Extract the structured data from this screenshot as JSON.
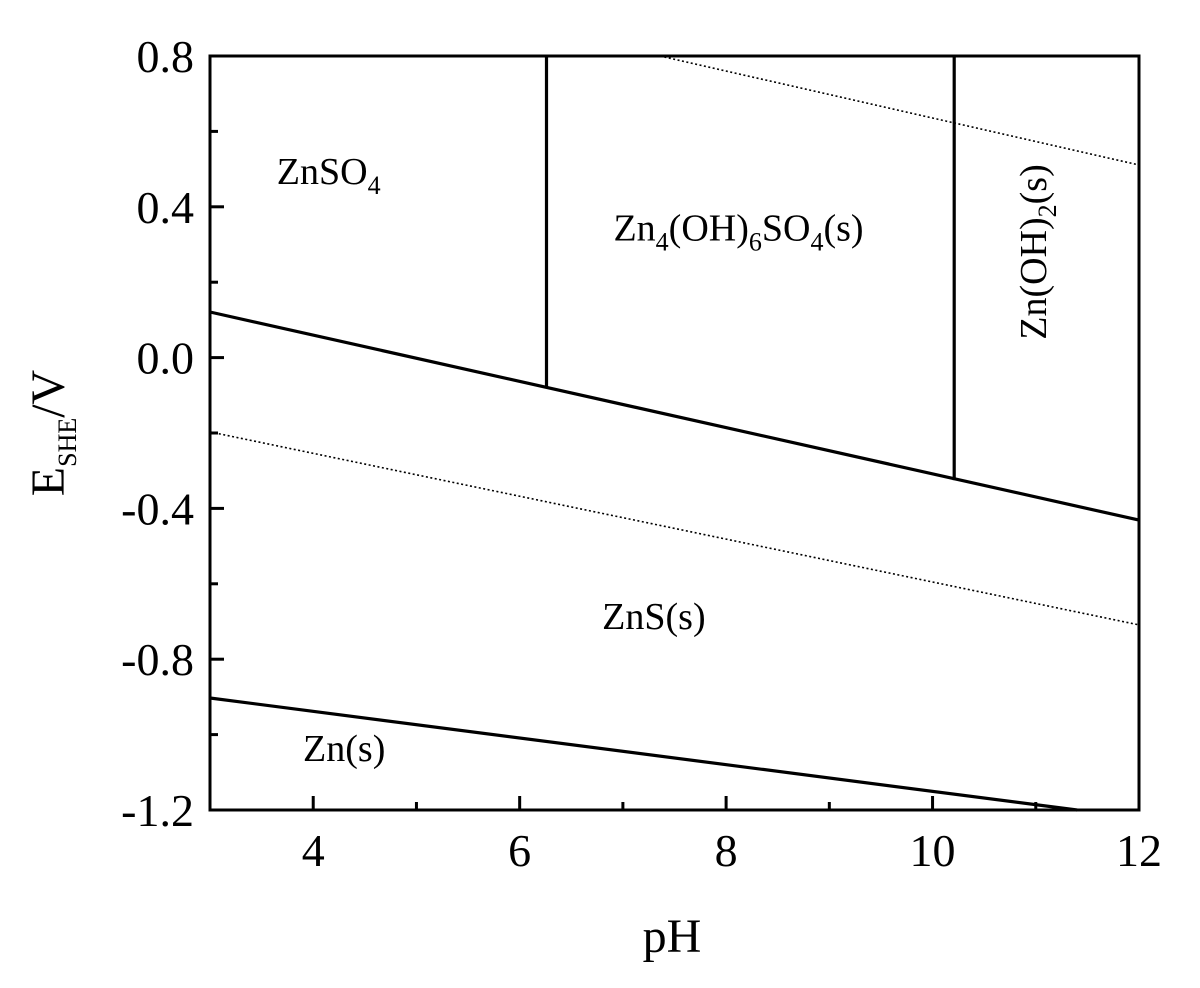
{
  "chart_data": {
    "type": "line",
    "title": "",
    "subtitle": "",
    "xlabel": "pH",
    "ylabel": "E_SHE/V",
    "ylabel_parts": {
      "main": "E",
      "sub": "SHE",
      "tail": "/V"
    },
    "xlim": [
      3,
      12
    ],
    "ylim": [
      -1.2,
      0.8
    ],
    "x_ticks": [
      4,
      6,
      8,
      10,
      12
    ],
    "x_tick_labels": [
      "4",
      "6",
      "8",
      "10",
      "12"
    ],
    "x_minor_ticks": [
      3,
      5,
      7,
      9,
      11
    ],
    "y_ticks": [
      0.8,
      0.4,
      0.0,
      -0.4,
      -0.8,
      -1.2
    ],
    "y_tick_labels": [
      "0.8",
      "0.4",
      "0.0",
      "-0.4",
      "-0.8",
      "-1.2"
    ],
    "y_minor_ticks": [
      0.6,
      0.2,
      -0.2,
      -0.6,
      -1.0
    ],
    "grid": false,
    "legend": null,
    "series": [
      {
        "name": "ZnSO4/Zn4(OH)6SO4/Zn(OH)2 - ZnS boundary",
        "style": "solid",
        "x": [
          3,
          12
        ],
        "y": [
          0.121,
          -0.431
        ]
      },
      {
        "name": "ZnSO4 - Zn4(OH)6SO4 boundary",
        "style": "solid",
        "x": [
          6.26,
          6.26
        ],
        "y": [
          0.8,
          -0.078
        ]
      },
      {
        "name": "Zn4(OH)6SO4 - Zn(OH)2 boundary",
        "style": "solid",
        "x": [
          10.21,
          10.21
        ],
        "y": [
          0.8,
          -0.325
        ]
      },
      {
        "name": "ZnS - Zn boundary",
        "style": "solid",
        "x": [
          3,
          11.4
        ],
        "y": [
          -0.903,
          -1.2
        ]
      },
      {
        "name": "O2/H2O water line",
        "style": "dotted",
        "x": [
          7.36,
          12
        ],
        "y": [
          0.8,
          0.511
        ]
      },
      {
        "name": "H+/H2 water line",
        "style": "dotted",
        "x": [
          3,
          12
        ],
        "y": [
          -0.197,
          -0.709
        ]
      }
    ],
    "annotations": [
      {
        "id": "znso4",
        "text": "ZnSO4",
        "parts": [
          [
            "ZnSO",
            ""
          ],
          [
            "4",
            "sub"
          ]
        ],
        "x": 4.15,
        "y": 0.46
      },
      {
        "id": "zn4",
        "text": "Zn4(OH)6SO4(s)",
        "parts": [
          [
            "Zn",
            ""
          ],
          [
            "4",
            "sub"
          ],
          [
            "(OH)",
            ""
          ],
          [
            "6",
            "sub"
          ],
          [
            "SO",
            ""
          ],
          [
            "4",
            "sub"
          ],
          [
            "(s)",
            ""
          ]
        ],
        "x": 8.12,
        "y": 0.31
      },
      {
        "id": "znoh2",
        "text": "Zn(OH)2(s)",
        "parts": [
          [
            "Zn(OH)",
            ""
          ],
          [
            "2",
            "sub"
          ],
          [
            "(s)",
            ""
          ]
        ],
        "x": 11.1,
        "y": 0.28,
        "rotation": -90
      },
      {
        "id": "zns",
        "text": "ZnS(s)",
        "parts": [
          [
            "ZnS(s)",
            ""
          ]
        ],
        "x": 7.3,
        "y": -0.72
      },
      {
        "id": "zn",
        "text": "Zn(s)",
        "parts": [
          [
            "Zn(s)",
            ""
          ]
        ],
        "x": 4.3,
        "y": -1.07
      }
    ]
  }
}
